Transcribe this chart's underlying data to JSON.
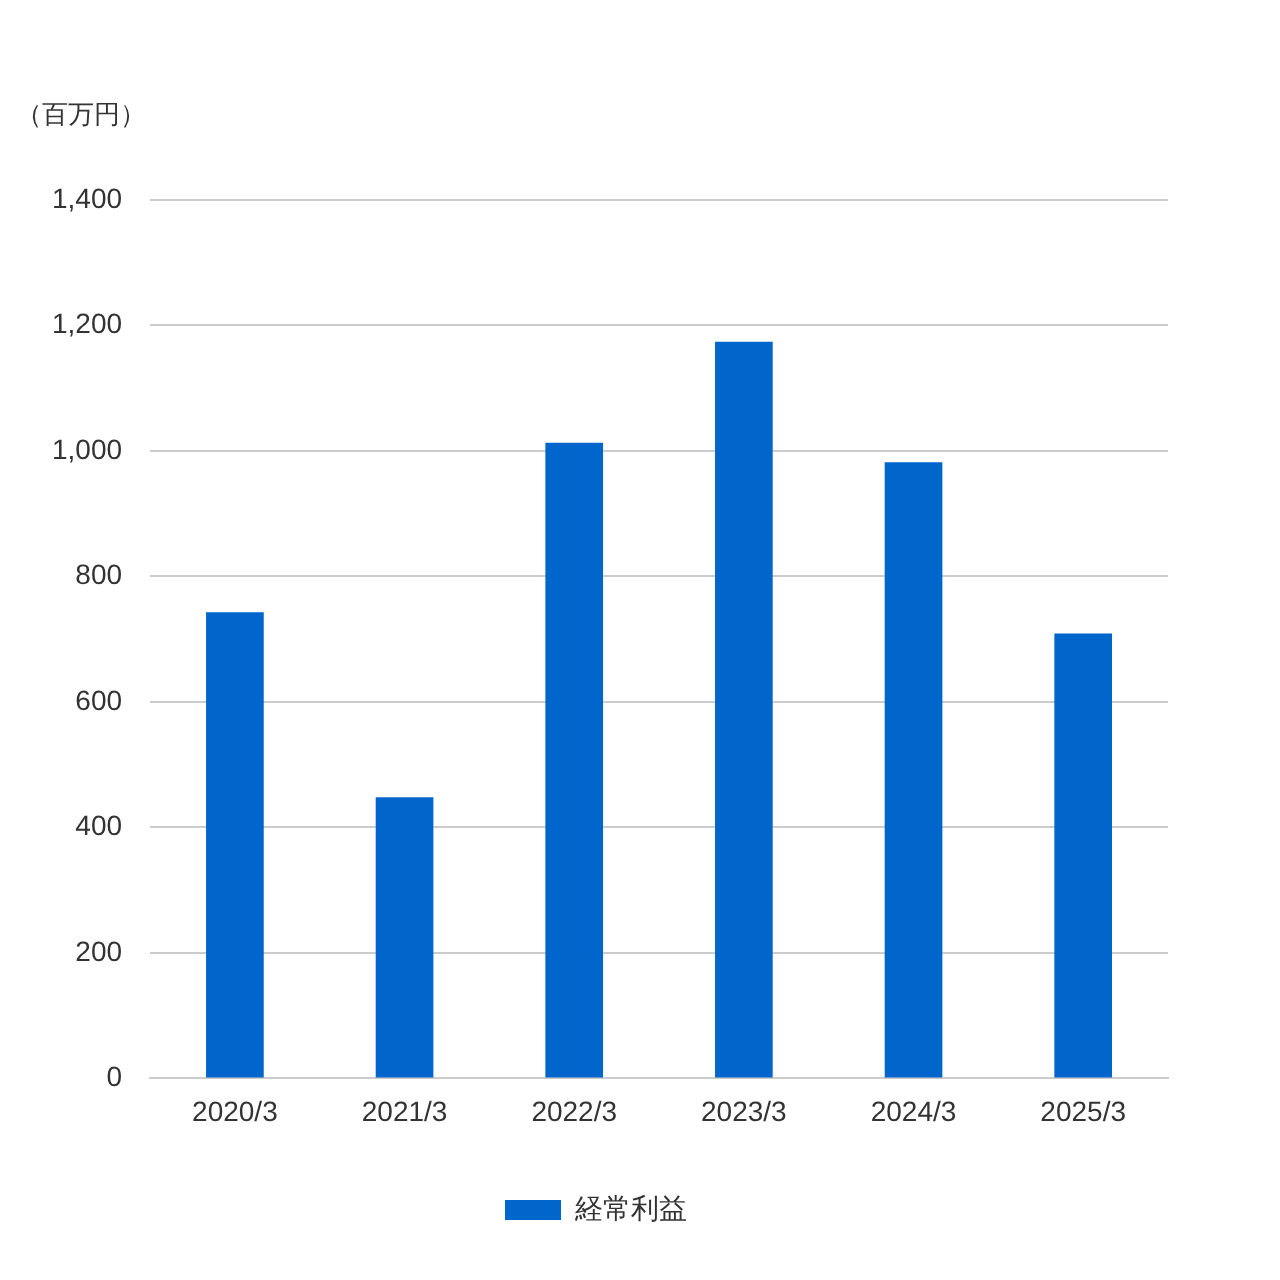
{
  "chart_data": {
    "type": "bar",
    "ylabel": "（百万円）",
    "categories": [
      "2020/3",
      "2021/3",
      "2022/3",
      "2023/3",
      "2024/3",
      "2025/3"
    ],
    "series": [
      {
        "name": "経常利益",
        "color": "#0066cc",
        "values": [
          743,
          448,
          1013,
          1174,
          982,
          709
        ]
      }
    ],
    "ylim": [
      0,
      1400
    ],
    "yticks": [
      0,
      200,
      400,
      600,
      800,
      {
        "value": 1000,
        "label": "1,000"
      },
      {
        "value": 1200,
        "label": "1,200"
      },
      {
        "value": 1400,
        "label": "1,400"
      }
    ],
    "grid": "y",
    "legend": "bottom"
  }
}
